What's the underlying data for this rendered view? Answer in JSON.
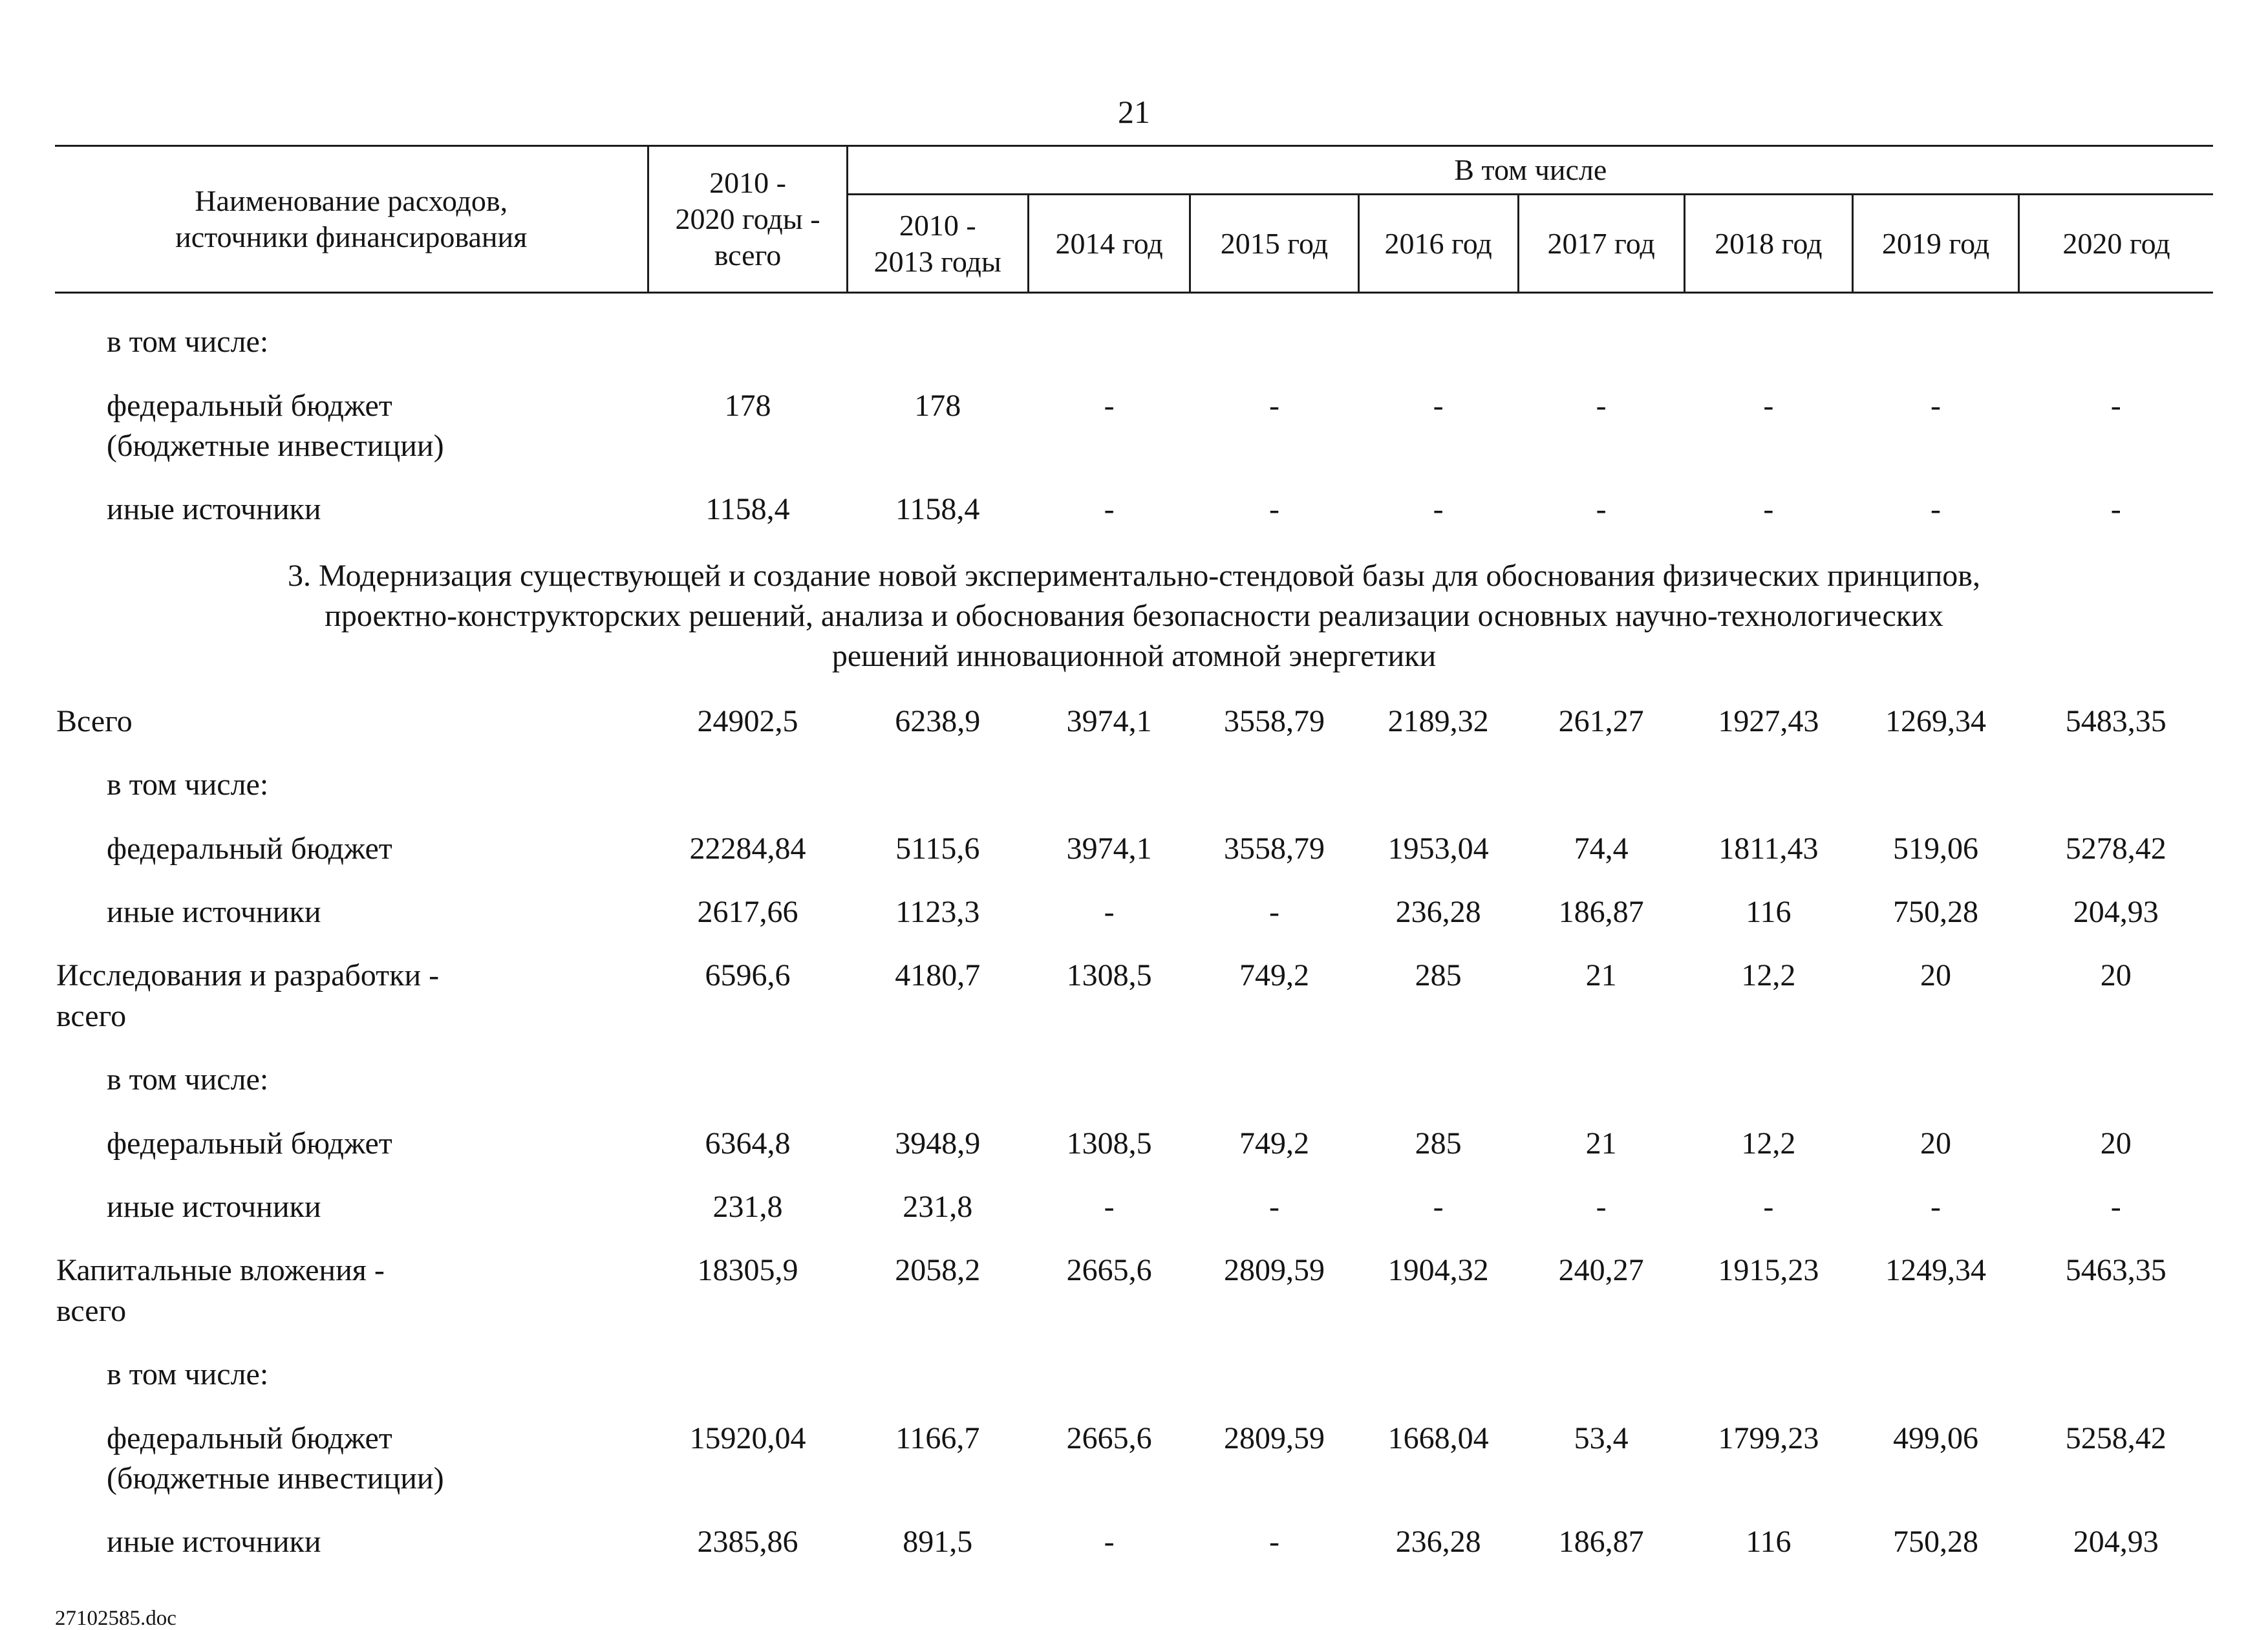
{
  "page": {
    "number": "21",
    "footer": "27102585.doc"
  },
  "table": {
    "header": {
      "col_name": "Наименование расходов,\nисточники финансирования",
      "col_total": "2010 -\n2020 годы -\nвсего",
      "group": "В том числе",
      "years": [
        "2010 -\n2013 годы",
        "2014 год",
        "2015 год",
        "2016 год",
        "2017 год",
        "2018 год",
        "2019 год",
        "2020 год"
      ]
    },
    "rows": [
      {
        "type": "subhead",
        "indent": 1,
        "label": "в том числе:"
      },
      {
        "type": "data",
        "indent": 1,
        "label": "федеральный бюджет\n(бюджетные инвестиции)",
        "values": [
          "178",
          "178",
          "-",
          "-",
          "-",
          "-",
          "-",
          "-",
          "-"
        ]
      },
      {
        "type": "data",
        "indent": 1,
        "label": "иные источники",
        "values": [
          "1158,4",
          "1158,4",
          "-",
          "-",
          "-",
          "-",
          "-",
          "-",
          "-"
        ]
      },
      {
        "type": "section",
        "text": "3. Модернизация существующей и создание новой экспериментально-стендовой базы для обоснования физических принципов,\nпроектно-конструкторских решений, анализа и обоснования безопасности реализации основных научно-технологических\nрешений инновационной атомной энергетики"
      },
      {
        "type": "data",
        "indent": 0,
        "label": "Всего",
        "values": [
          "24902,5",
          "6238,9",
          "3974,1",
          "3558,79",
          "2189,32",
          "261,27",
          "1927,43",
          "1269,34",
          "5483,35"
        ]
      },
      {
        "type": "subhead",
        "indent": 1,
        "label": "в том числе:"
      },
      {
        "type": "data",
        "indent": 1,
        "label": "федеральный бюджет",
        "values": [
          "22284,84",
          "5115,6",
          "3974,1",
          "3558,79",
          "1953,04",
          "74,4",
          "1811,43",
          "519,06",
          "5278,42"
        ]
      },
      {
        "type": "data",
        "indent": 1,
        "label": "иные источники",
        "values": [
          "2617,66",
          "1123,3",
          "-",
          "-",
          "236,28",
          "186,87",
          "116",
          "750,28",
          "204,93"
        ]
      },
      {
        "type": "data",
        "indent": 0,
        "label": "Исследования и разработки -\nвсего",
        "values": [
          "6596,6",
          "4180,7",
          "1308,5",
          "749,2",
          "285",
          "21",
          "12,2",
          "20",
          "20"
        ]
      },
      {
        "type": "subhead",
        "indent": 1,
        "label": "в том числе:"
      },
      {
        "type": "data",
        "indent": 1,
        "label": "федеральный бюджет",
        "values": [
          "6364,8",
          "3948,9",
          "1308,5",
          "749,2",
          "285",
          "21",
          "12,2",
          "20",
          "20"
        ]
      },
      {
        "type": "data",
        "indent": 1,
        "label": "иные источники",
        "values": [
          "231,8",
          "231,8",
          "-",
          "-",
          "-",
          "-",
          "-",
          "-",
          "-"
        ]
      },
      {
        "type": "data",
        "indent": 0,
        "label": "Капитальные вложения -\nвсего",
        "values": [
          "18305,9",
          "2058,2",
          "2665,6",
          "2809,59",
          "1904,32",
          "240,27",
          "1915,23",
          "1249,34",
          "5463,35"
        ]
      },
      {
        "type": "subhead",
        "indent": 1,
        "label": "в том числе:"
      },
      {
        "type": "data",
        "indent": 1,
        "label": "федеральный бюджет\n(бюджетные инвестиции)",
        "values": [
          "15920,04",
          "1166,7",
          "2665,6",
          "2809,59",
          "1668,04",
          "53,4",
          "1799,23",
          "499,06",
          "5258,42"
        ]
      },
      {
        "type": "data",
        "indent": 1,
        "label": "иные источники",
        "values": [
          "2385,86",
          "891,5",
          "-",
          "-",
          "236,28",
          "186,87",
          "116",
          "750,28",
          "204,93"
        ]
      }
    ]
  }
}
